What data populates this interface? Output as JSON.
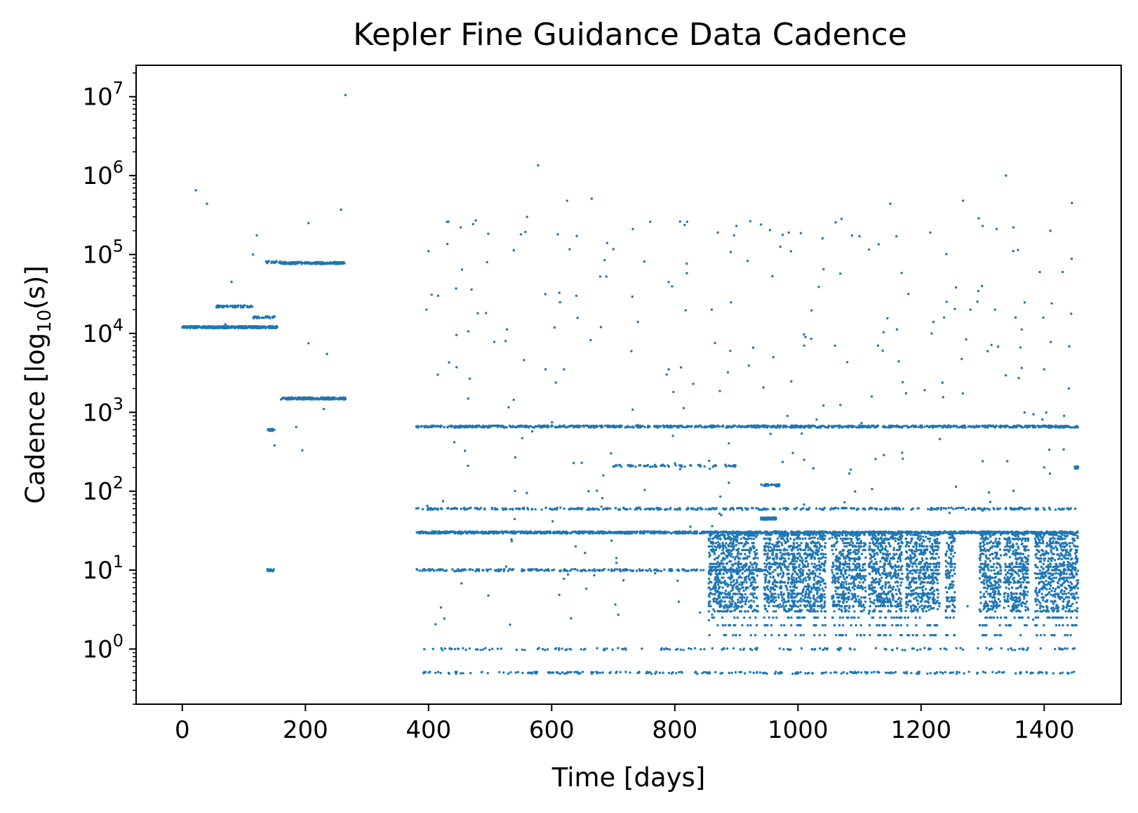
{
  "chart_data": {
    "type": "scatter",
    "title": "Kepler Fine Guidance Data Cadence",
    "xlabel": "Time [days]",
    "ylabel_main": "Cadence [log",
    "ylabel_sub": "10",
    "ylabel_tail": "(s)]",
    "xlim": [
      -75,
      1525
    ],
    "ylim": [
      0.2,
      25000000
    ],
    "yscale": "log",
    "grid": false,
    "legend": "none",
    "x_ticks": [
      0,
      200,
      400,
      600,
      800,
      1000,
      1200,
      1400
    ],
    "y_ticks": [
      {
        "value": 1,
        "base": "10",
        "exp": "0"
      },
      {
        "value": 10,
        "base": "10",
        "exp": "1"
      },
      {
        "value": 100,
        "base": "10",
        "exp": "2"
      },
      {
        "value": 1000,
        "base": "10",
        "exp": "3"
      },
      {
        "value": 10000,
        "base": "10",
        "exp": "4"
      },
      {
        "value": 100000,
        "base": "10",
        "exp": "5"
      },
      {
        "value": 1000000,
        "base": "10",
        "exp": "6"
      },
      {
        "value": 10000000,
        "base": "10",
        "exp": "7"
      }
    ],
    "marker_color": "#1f77b4",
    "clusters": [
      {
        "x": [
          0,
          30
        ],
        "y": 12000,
        "n": 60
      },
      {
        "x": [
          30,
          155
        ],
        "y": 12000,
        "n": 300
      },
      {
        "x": [
          55,
          115
        ],
        "y": 22000,
        "n": 70
      },
      {
        "x": [
          115,
          150
        ],
        "y": 16000,
        "n": 25
      },
      {
        "x": [
          135,
          160
        ],
        "y": 80000,
        "n": 25
      },
      {
        "x": [
          160,
          265
        ],
        "y": 78000,
        "n": 180
      },
      {
        "x": [
          160,
          265
        ],
        "y": 1500,
        "n": 200
      },
      {
        "x": [
          138,
          150
        ],
        "y": 600,
        "n": 12
      },
      {
        "x": [
          138,
          150
        ],
        "y": 10,
        "n": 12
      },
      {
        "x": [
          380,
          1455
        ],
        "y": 660,
        "n": 900
      },
      {
        "x": [
          380,
          1455
        ],
        "y": 30,
        "n": 1400
      },
      {
        "x": [
          380,
          1455
        ],
        "y": 60,
        "n": 400
      },
      {
        "x": [
          390,
          1450
        ],
        "y": 0.5,
        "n": 250
      },
      {
        "x": [
          390,
          1450
        ],
        "y": 1,
        "n": 160
      },
      {
        "x": [
          380,
          950
        ],
        "y": 10,
        "n": 250
      },
      {
        "x": [
          700,
          900
        ],
        "y": 210,
        "n": 70
      },
      {
        "x": [
          940,
          965
        ],
        "y": 45,
        "n": 120
      },
      {
        "x": [
          940,
          970
        ],
        "y": 120,
        "n": 30
      },
      {
        "x": [
          1450,
          1455
        ],
        "y": 200,
        "n": 60
      }
    ],
    "dense_blocks": [
      [
        855,
        935
      ],
      [
        945,
        1045
      ],
      [
        1055,
        1110
      ],
      [
        1115,
        1170
      ],
      [
        1175,
        1230
      ],
      [
        1240,
        1255
      ],
      [
        1295,
        1330
      ],
      [
        1335,
        1375
      ],
      [
        1385,
        1455
      ]
    ],
    "outliers": [
      [
        22,
        650000
      ],
      [
        40,
        440000
      ],
      [
        265,
        10500000
      ],
      [
        578,
        1350000
      ],
      [
        1338,
        1000000
      ],
      [
        121,
        175000
      ],
      [
        205,
        250000
      ],
      [
        258,
        370000
      ],
      [
        430,
        260000
      ],
      [
        560,
        300000
      ],
      [
        625,
        480000
      ],
      [
        665,
        510000
      ],
      [
        1268,
        480000
      ],
      [
        1445,
        450000
      ],
      [
        1150,
        440000
      ],
      [
        400,
        110000
      ],
      [
        470,
        36000
      ],
      [
        495,
        80000
      ],
      [
        550,
        180000
      ],
      [
        610,
        180000
      ],
      [
        690,
        140000
      ],
      [
        760,
        260000
      ],
      [
        820,
        260000
      ],
      [
        870,
        190000
      ],
      [
        900,
        230000
      ],
      [
        940,
        240000
      ],
      [
        985,
        190000
      ],
      [
        1040,
        160000
      ],
      [
        1100,
        170000
      ],
      [
        1160,
        170000
      ],
      [
        1215,
        190000
      ],
      [
        1300,
        230000
      ],
      [
        1350,
        220000
      ],
      [
        1410,
        200000
      ],
      [
        1430,
        60000
      ],
      [
        415,
        3000
      ],
      [
        480,
        18000
      ],
      [
        525,
        8000
      ],
      [
        555,
        4600
      ],
      [
        590,
        3500
      ],
      [
        620,
        3500
      ],
      [
        640,
        30000
      ],
      [
        680,
        12000
      ],
      [
        740,
        14000
      ],
      [
        790,
        3500
      ],
      [
        810,
        3700
      ],
      [
        860,
        20000
      ],
      [
        890,
        6000
      ],
      [
        960,
        5000
      ],
      [
        1010,
        7000
      ],
      [
        1060,
        7000
      ],
      [
        1130,
        7000
      ],
      [
        1170,
        2400
      ],
      [
        1220,
        14000
      ],
      [
        1280,
        20000
      ],
      [
        1320,
        20000
      ],
      [
        1400,
        3500
      ],
      [
        1440,
        2000
      ],
      [
        80,
        45000
      ],
      [
        70,
        13000
      ],
      [
        115,
        100000
      ],
      [
        235,
        5500
      ],
      [
        230,
        1100
      ],
      [
        205,
        7500
      ],
      [
        195,
        330
      ],
      [
        185,
        650
      ],
      [
        150,
        380
      ],
      [
        660,
        100
      ],
      [
        760,
        60
      ],
      [
        1010,
        250
      ],
      [
        1300,
        240
      ],
      [
        1340,
        240
      ],
      [
        1400,
        200
      ]
    ]
  }
}
